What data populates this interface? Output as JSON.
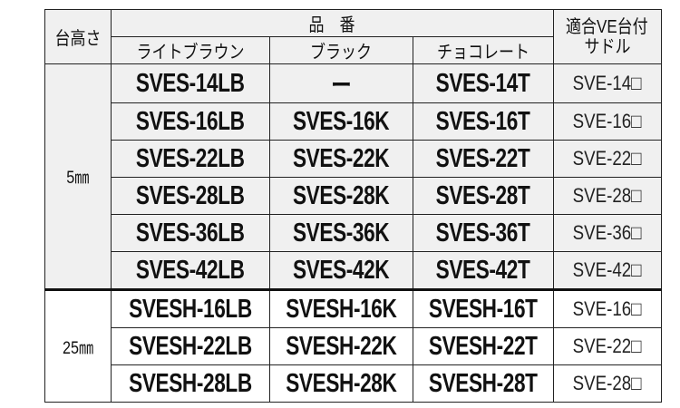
{
  "header": {
    "height_col": "台高さ",
    "part_no": "品　番",
    "colors": [
      "ライトブラウン",
      "ブラック",
      "チョコレート"
    ],
    "saddle_line1": "適合VE台付",
    "saddle_line2": "サドル"
  },
  "groups": [
    {
      "height": "5㎜",
      "rows": [
        {
          "lb": "SVES-14LB",
          "k": "ー",
          "t": "SVES-14T",
          "saddle": "SVE-14□"
        },
        {
          "lb": "SVES-16LB",
          "k": "SVES-16K",
          "t": "SVES-16T",
          "saddle": "SVE-16□"
        },
        {
          "lb": "SVES-22LB",
          "k": "SVES-22K",
          "t": "SVES-22T",
          "saddle": "SVE-22□"
        },
        {
          "lb": "SVES-28LB",
          "k": "SVES-28K",
          "t": "SVES-28T",
          "saddle": "SVE-28□"
        },
        {
          "lb": "SVES-36LB",
          "k": "SVES-36K",
          "t": "SVES-36T",
          "saddle": "SVE-36□"
        },
        {
          "lb": "SVES-42LB",
          "k": "SVES-42K",
          "t": "SVES-42T",
          "saddle": "SVE-42□"
        }
      ]
    },
    {
      "height": "25㎜",
      "rows": [
        {
          "lb": "SVESH-16LB",
          "k": "SVESH-16K",
          "t": "SVESH-16T",
          "saddle": "SVE-16□"
        },
        {
          "lb": "SVESH-22LB",
          "k": "SVESH-22K",
          "t": "SVESH-22T",
          "saddle": "SVE-22□"
        },
        {
          "lb": "SVESH-28LB",
          "k": "SVESH-28K",
          "t": "SVESH-28T",
          "saddle": "SVE-28□"
        }
      ]
    }
  ]
}
